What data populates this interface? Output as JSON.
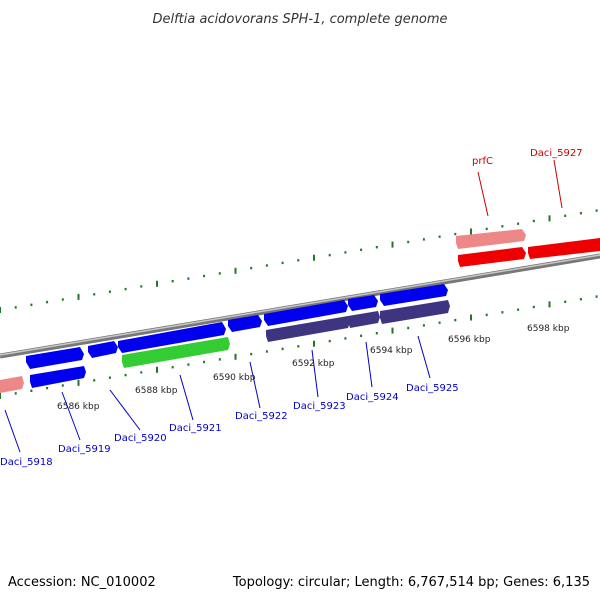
{
  "title": "Delftia acidovorans SPH-1, complete genome",
  "footer": {
    "accession": "Accession: NC_010002",
    "summary": "Topology: circular; Length: 6,767,514 bp; Genes: 6,135"
  },
  "colors": {
    "forward_gene": "#0000ee",
    "reverse_gene": "#3d3580",
    "highlight_gene": "#33cc33",
    "rna_gene": "#ee0000",
    "pseudo_gene": "#ee8888",
    "label_blue": "#0000cc",
    "label_red": "#cc0000",
    "tick": "#227722",
    "backbone": "#888888"
  },
  "scale": {
    "unit": "kbp",
    "labels": [
      "6586 kbp",
      "6588 kbp",
      "6590 kbp",
      "6592 kbp",
      "6594 kbp",
      "6596 kbp",
      "6598 kbp"
    ]
  },
  "gene_labels": [
    {
      "text": "Daci_5918",
      "color": "blue"
    },
    {
      "text": "Daci_5919",
      "color": "blue"
    },
    {
      "text": "Daci_5920",
      "color": "blue"
    },
    {
      "text": "Daci_5921",
      "color": "blue"
    },
    {
      "text": "Daci_5922",
      "color": "blue"
    },
    {
      "text": "Daci_5923",
      "color": "blue"
    },
    {
      "text": "Daci_5924",
      "color": "blue"
    },
    {
      "text": "Daci_5925",
      "color": "blue"
    },
    {
      "text": "prfC",
      "color": "red"
    },
    {
      "text": "Daci_5927",
      "color": "red"
    }
  ]
}
